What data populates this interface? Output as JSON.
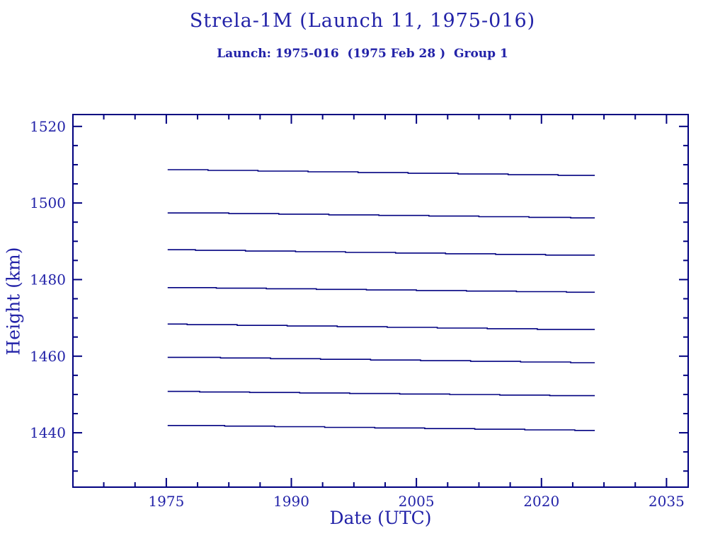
{
  "header": {
    "title": "Strela-1M (Launch 11, 1975-016)",
    "subtitle": "Launch: 1975-016  (1975 Feb 28 )  Group 1"
  },
  "colors": {
    "text": "#2222a8",
    "ink": "#000080",
    "background": "#ffffff"
  },
  "chart_data": {
    "type": "line",
    "title": "Strela-1M (Launch 11, 1975-016)",
    "subtitle": "Launch: 1975-016  (1975 Feb 28 )  Group 1",
    "xlabel": "Date (UTC)",
    "ylabel": "Height (km)",
    "xlim": [
      1963.8,
      2037.6
    ],
    "ylim": [
      1425.8,
      1523.1
    ],
    "x_major_ticks": [
      1975,
      1990,
      2005,
      2020,
      2035
    ],
    "x_minor_ticks": [
      1967.5,
      1971.25,
      1978.75,
      1982.5,
      1986.25,
      1993.75,
      1997.5,
      2001.25,
      2008.75,
      2012.5,
      2016.25,
      2023.75,
      2027.5,
      2031.25
    ],
    "y_major_ticks": [
      1440,
      1460,
      1480,
      1500,
      1520
    ],
    "y_minor_ticks": [
      1430,
      1435,
      1445,
      1450,
      1455,
      1465,
      1470,
      1475,
      1485,
      1490,
      1495,
      1505,
      1510,
      1515
    ],
    "grid": false,
    "legend_position": "none",
    "interpolation": "step-after",
    "series": [
      {
        "name": "satellite-line-1",
        "points": [
          [
            1975.16,
            1508.7
          ],
          [
            1980,
            1508.51
          ],
          [
            1986,
            1508.33
          ],
          [
            1992,
            1508.14
          ],
          [
            1998,
            1507.95
          ],
          [
            2004,
            1507.76
          ],
          [
            2010,
            1507.58
          ],
          [
            2016,
            1507.39
          ],
          [
            2022,
            1507.2
          ],
          [
            2026.4,
            1507.2
          ]
        ]
      },
      {
        "name": "satellite-line-2",
        "points": [
          [
            1975.16,
            1497.4
          ],
          [
            1982.5,
            1497.24
          ],
          [
            1988.5,
            1497.08
          ],
          [
            1994.5,
            1496.91
          ],
          [
            2000.5,
            1496.75
          ],
          [
            2006.5,
            1496.59
          ],
          [
            2012.5,
            1496.43
          ],
          [
            2018.5,
            1496.26
          ],
          [
            2023.5,
            1496.1
          ],
          [
            2026.4,
            1496.1
          ]
        ]
      },
      {
        "name": "satellite-line-3",
        "points": [
          [
            1975.16,
            1487.8
          ],
          [
            1978.5,
            1487.63
          ],
          [
            1984.5,
            1487.45
          ],
          [
            1990.5,
            1487.28
          ],
          [
            1996.5,
            1487.1
          ],
          [
            2002.5,
            1486.93
          ],
          [
            2008.5,
            1486.75
          ],
          [
            2014.5,
            1486.58
          ],
          [
            2020.5,
            1486.4
          ],
          [
            2026.4,
            1486.4
          ]
        ]
      },
      {
        "name": "satellite-line-4",
        "points": [
          [
            1975.16,
            1477.9
          ],
          [
            1981,
            1477.75
          ],
          [
            1987,
            1477.6
          ],
          [
            1993,
            1477.45
          ],
          [
            1999,
            1477.3
          ],
          [
            2005,
            1477.15
          ],
          [
            2011,
            1477.0
          ],
          [
            2017,
            1476.85
          ],
          [
            2023,
            1476.7
          ],
          [
            2026.4,
            1476.7
          ]
        ]
      },
      {
        "name": "satellite-line-5",
        "points": [
          [
            1975.16,
            1468.4
          ],
          [
            1977.5,
            1468.23
          ],
          [
            1983.5,
            1468.05
          ],
          [
            1989.5,
            1467.88
          ],
          [
            1995.5,
            1467.7
          ],
          [
            2001.5,
            1467.53
          ],
          [
            2007.5,
            1467.35
          ],
          [
            2013.5,
            1467.18
          ],
          [
            2019.5,
            1467.0
          ],
          [
            2026.4,
            1467.0
          ]
        ]
      },
      {
        "name": "satellite-line-6",
        "points": [
          [
            1975.16,
            1459.7
          ],
          [
            1981.5,
            1459.53
          ],
          [
            1987.5,
            1459.35
          ],
          [
            1993.5,
            1459.18
          ],
          [
            1999.5,
            1459.0
          ],
          [
            2005.5,
            1458.83
          ],
          [
            2011.5,
            1458.65
          ],
          [
            2017.5,
            1458.48
          ],
          [
            2023.5,
            1458.3
          ],
          [
            2026.4,
            1458.3
          ]
        ]
      },
      {
        "name": "satellite-line-7",
        "points": [
          [
            1975.16,
            1450.8
          ],
          [
            1979,
            1450.66
          ],
          [
            1985,
            1450.52
          ],
          [
            1991,
            1450.39
          ],
          [
            1997,
            1450.25
          ],
          [
            2003,
            1450.11
          ],
          [
            2009,
            1449.98
          ],
          [
            2015,
            1449.84
          ],
          [
            2021,
            1449.7
          ],
          [
            2026.4,
            1449.7
          ]
        ]
      },
      {
        "name": "satellite-line-8",
        "points": [
          [
            1975.16,
            1441.9
          ],
          [
            1982,
            1441.74
          ],
          [
            1988,
            1441.58
          ],
          [
            1994,
            1441.41
          ],
          [
            2000,
            1441.25
          ],
          [
            2006,
            1441.09
          ],
          [
            2012,
            1440.93
          ],
          [
            2018,
            1440.76
          ],
          [
            2024,
            1440.6
          ],
          [
            2026.4,
            1440.6
          ]
        ]
      }
    ]
  }
}
